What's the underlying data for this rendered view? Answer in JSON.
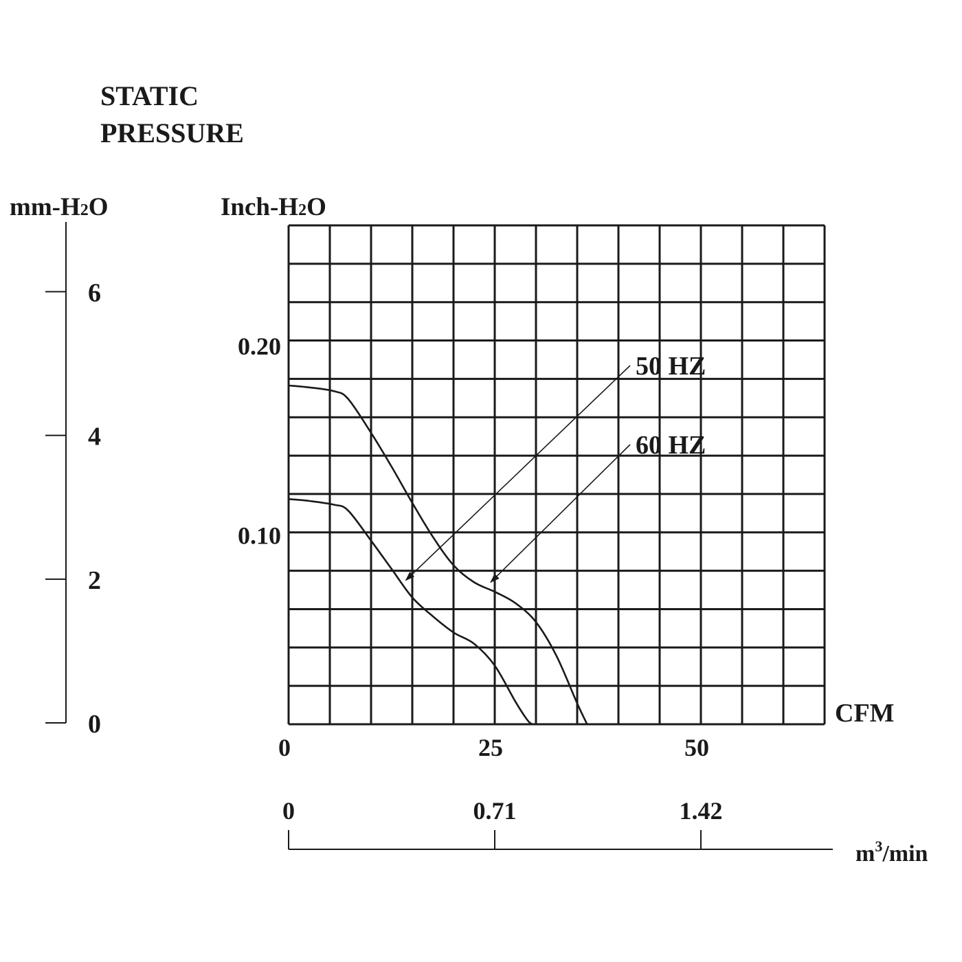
{
  "colors": {
    "ink": "#1a1a1a",
    "grid": "#1a1a1a",
    "background": "#ffffff"
  },
  "chart_data": {
    "type": "line",
    "title_lines": [
      "STATIC",
      "PRESSURE"
    ],
    "y_left_label": "mm-H2O",
    "y_left_label_parts": {
      "base": "mm-H",
      "sub": "2",
      "tail": "O"
    },
    "y_left_ticks": [
      "6",
      "4",
      "2",
      "0"
    ],
    "y_left_tick_values": [
      6,
      4,
      2,
      0
    ],
    "y_left_lim": [
      0,
      6.97
    ],
    "ylabel": "Inch-H2O",
    "ylabel_parts": {
      "base": "Inch-H",
      "sub": "2",
      "tail": "O"
    },
    "y_ticks": [
      "0.20",
      "0.10"
    ],
    "y_tick_values": [
      0.2,
      0.1
    ],
    "ylim": [
      0,
      0.2636
    ],
    "xlabel": "CFM",
    "x_ticks": [
      "0",
      "25",
      "50"
    ],
    "x_tick_values": [
      0,
      25,
      50
    ],
    "xlim": [
      0,
      65
    ],
    "x2_label": "m3/min",
    "x2_label_parts": {
      "base": "m",
      "sup": "3",
      "tail": "/min"
    },
    "x2_ticks": [
      "0",
      "0.71",
      "1.42"
    ],
    "x2_tick_values": [
      0,
      0.71,
      1.42
    ],
    "grid": true,
    "grid_divisions": {
      "x": 13,
      "y": 13
    },
    "series": [
      {
        "name": "50 HZ",
        "x": [
          0,
          2.5,
          5.5,
          7.2,
          10,
          12.5,
          15,
          17.5,
          20,
          22.5,
          25,
          27.5,
          29,
          29.6
        ],
        "y": [
          0.119,
          0.118,
          0.116,
          0.113,
          0.097,
          0.082,
          0.067,
          0.057,
          0.0485,
          0.0425,
          0.031,
          0.012,
          0.002,
          0
        ]
      },
      {
        "name": "60 HZ",
        "x": [
          0,
          2.5,
          5.5,
          7.2,
          10,
          12.5,
          15,
          17.5,
          20,
          22.5,
          25,
          27.5,
          30,
          32.5,
          35,
          36.2
        ],
        "y": [
          0.179,
          0.178,
          0.176,
          0.172,
          0.154,
          0.136,
          0.117,
          0.099,
          0.084,
          0.075,
          0.07,
          0.064,
          0.054,
          0.036,
          0.011,
          0
        ]
      }
    ],
    "annotations": [
      {
        "text": "50 HZ",
        "series": "50 HZ",
        "arrow_to_x": 14.2,
        "arrow_to_y": 0.076
      },
      {
        "text": "60 HZ",
        "series": "60 HZ",
        "arrow_to_x": 24.5,
        "arrow_to_y": 0.075
      }
    ]
  }
}
